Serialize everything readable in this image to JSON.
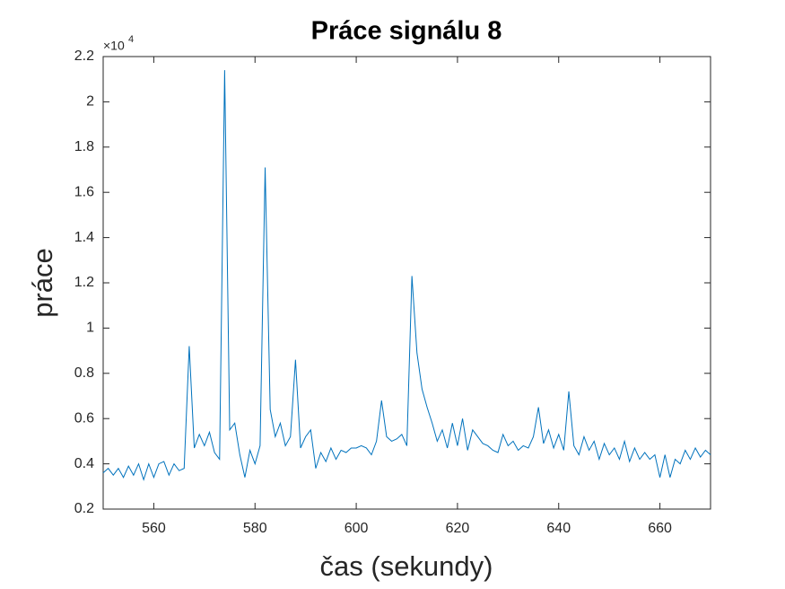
{
  "chart_data": {
    "type": "line",
    "title": "Práce signálu 8",
    "x_label": "čas (sekundy)",
    "y_label": "práce",
    "y_multiplier": {
      "base": "×10",
      "exponent": "4"
    },
    "x": [
      550,
      551,
      552,
      553,
      554,
      555,
      556,
      557,
      558,
      559,
      560,
      561,
      562,
      563,
      564,
      565,
      566,
      567,
      568,
      569,
      570,
      571,
      572,
      573,
      574,
      575,
      576,
      577,
      578,
      579,
      580,
      581,
      582,
      583,
      584,
      585,
      586,
      587,
      588,
      589,
      590,
      591,
      592,
      593,
      594,
      595,
      596,
      597,
      598,
      599,
      600,
      601,
      602,
      603,
      604,
      605,
      606,
      607,
      608,
      609,
      610,
      611,
      612,
      613,
      614,
      615,
      616,
      617,
      618,
      619,
      620,
      621,
      622,
      623,
      624,
      625,
      626,
      627,
      628,
      629,
      630,
      631,
      632,
      633,
      634,
      635,
      636,
      637,
      638,
      639,
      640,
      641,
      642,
      643,
      644,
      645,
      646,
      647,
      648,
      649,
      650,
      651,
      652,
      653,
      654,
      655,
      656,
      657,
      658,
      659,
      660,
      661,
      662,
      663,
      664,
      665,
      666,
      667,
      668,
      669,
      670
    ],
    "series": [
      {
        "color": "#0072bd",
        "values": [
          0.36,
          0.38,
          0.35,
          0.38,
          0.34,
          0.39,
          0.35,
          0.4,
          0.33,
          0.4,
          0.34,
          0.4,
          0.41,
          0.35,
          0.4,
          0.37,
          0.38,
          0.92,
          0.47,
          0.53,
          0.48,
          0.54,
          0.45,
          0.42,
          2.14,
          0.55,
          0.58,
          0.44,
          0.34,
          0.46,
          0.4,
          0.48,
          1.71,
          0.64,
          0.52,
          0.58,
          0.48,
          0.52,
          0.86,
          0.47,
          0.52,
          0.55,
          0.38,
          0.45,
          0.41,
          0.47,
          0.42,
          0.46,
          0.45,
          0.47,
          0.47,
          0.48,
          0.47,
          0.44,
          0.5,
          0.68,
          0.52,
          0.5,
          0.51,
          0.53,
          0.48,
          1.23,
          0.89,
          0.73,
          0.65,
          0.58,
          0.5,
          0.55,
          0.47,
          0.58,
          0.48,
          0.6,
          0.46,
          0.55,
          0.52,
          0.49,
          0.48,
          0.46,
          0.45,
          0.53,
          0.48,
          0.5,
          0.46,
          0.48,
          0.47,
          0.52,
          0.65,
          0.49,
          0.55,
          0.47,
          0.53,
          0.46,
          0.72,
          0.48,
          0.44,
          0.52,
          0.46,
          0.5,
          0.42,
          0.49,
          0.44,
          0.47,
          0.42,
          0.5,
          0.41,
          0.47,
          0.42,
          0.45,
          0.42,
          0.44,
          0.34,
          0.44,
          0.34,
          0.42,
          0.4,
          0.46,
          0.42,
          0.47,
          0.43,
          0.46,
          0.44
        ]
      }
    ],
    "xlim": [
      550,
      670
    ],
    "xticks": [
      560,
      580,
      600,
      620,
      640,
      660
    ],
    "ylim": [
      0.2,
      2.2
    ],
    "yticks": [
      0.2,
      0.4,
      0.6,
      0.8,
      1,
      1.2,
      1.4,
      1.6,
      1.8,
      2,
      2.2
    ]
  }
}
